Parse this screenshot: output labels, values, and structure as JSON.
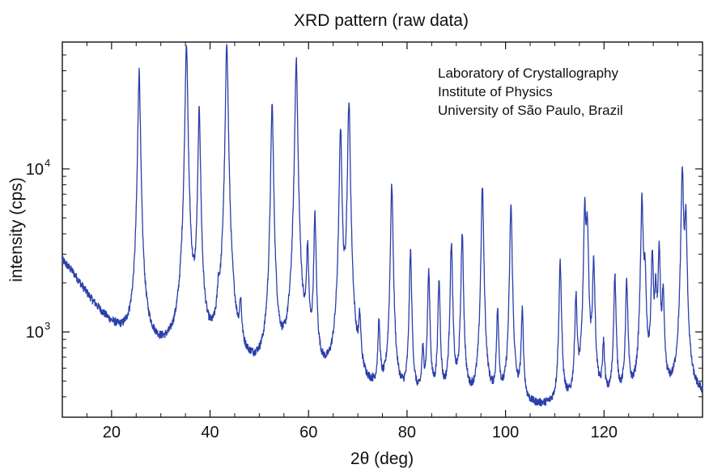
{
  "chart_data": {
    "type": "line",
    "title": "XRD pattern (raw data)",
    "xlabel": "2θ (deg)",
    "ylabel": "intensity (cps)",
    "xlim": [
      10,
      140
    ],
    "ylim": [
      300,
      60000
    ],
    "yscale": "log",
    "grid": false,
    "series_color": "#2b3fa8",
    "xticks": [
      {
        "value": 20,
        "label": "20"
      },
      {
        "value": 40,
        "label": "40"
      },
      {
        "value": 60,
        "label": "60"
      },
      {
        "value": 80,
        "label": "80"
      },
      {
        "value": 100,
        "label": "100"
      },
      {
        "value": 120,
        "label": "120"
      }
    ],
    "yticks": [
      {
        "value": 1000,
        "base": "10",
        "exp": "3"
      },
      {
        "value": 10000,
        "base": "10",
        "exp": "4"
      }
    ],
    "annotations": [
      "Laboratory of Crystallography",
      "Institute of Physics",
      "University of São Paulo, Brazil"
    ],
    "background": [
      [
        10,
        2750
      ],
      [
        12,
        2350
      ],
      [
        14,
        1900
      ],
      [
        16,
        1550
      ],
      [
        18,
        1300
      ],
      [
        20,
        1100
      ],
      [
        22,
        960
      ],
      [
        24,
        880
      ],
      [
        26,
        820
      ],
      [
        30,
        720
      ],
      [
        35,
        640
      ],
      [
        40,
        580
      ],
      [
        45,
        540
      ],
      [
        50,
        500
      ],
      [
        55,
        470
      ],
      [
        60,
        440
      ],
      [
        65,
        420
      ],
      [
        70,
        390
      ],
      [
        75,
        370
      ],
      [
        80,
        350
      ],
      [
        85,
        340
      ],
      [
        90,
        340
      ],
      [
        95,
        340
      ],
      [
        100,
        340
      ],
      [
        105,
        335
      ],
      [
        110,
        330
      ],
      [
        115,
        330
      ],
      [
        120,
        340
      ],
      [
        125,
        350
      ],
      [
        130,
        360
      ],
      [
        135,
        380
      ],
      [
        140,
        390
      ]
    ],
    "peaks": [
      {
        "x": 25.6,
        "y": 40000
      },
      {
        "x": 35.2,
        "y": 60000
      },
      {
        "x": 37.8,
        "y": 23000
      },
      {
        "x": 41.7,
        "y": 1150
      },
      {
        "x": 43.4,
        "y": 60000
      },
      {
        "x": 46.2,
        "y": 1200
      },
      {
        "x": 52.6,
        "y": 25000
      },
      {
        "x": 57.5,
        "y": 48000
      },
      {
        "x": 59.8,
        "y": 3000
      },
      {
        "x": 61.3,
        "y": 5000
      },
      {
        "x": 66.5,
        "y": 18000
      },
      {
        "x": 68.2,
        "y": 26000
      },
      {
        "x": 70.4,
        "y": 1000
      },
      {
        "x": 74.3,
        "y": 1050
      },
      {
        "x": 76.9,
        "y": 8000
      },
      {
        "x": 80.7,
        "y": 3100
      },
      {
        "x": 83.2,
        "y": 700
      },
      {
        "x": 84.4,
        "y": 2300
      },
      {
        "x": 86.5,
        "y": 2000
      },
      {
        "x": 89.0,
        "y": 3500
      },
      {
        "x": 91.2,
        "y": 4000
      },
      {
        "x": 95.3,
        "y": 7800
      },
      {
        "x": 98.4,
        "y": 1300
      },
      {
        "x": 101.1,
        "y": 6000
      },
      {
        "x": 103.4,
        "y": 1300
      },
      {
        "x": 111.1,
        "y": 2700
      },
      {
        "x": 114.3,
        "y": 1600
      },
      {
        "x": 116.1,
        "y": 5600
      },
      {
        "x": 116.6,
        "y": 4500
      },
      {
        "x": 117.9,
        "y": 2700
      },
      {
        "x": 119.9,
        "y": 800
      },
      {
        "x": 122.2,
        "y": 2200
      },
      {
        "x": 124.6,
        "y": 2000
      },
      {
        "x": 127.7,
        "y": 6500
      },
      {
        "x": 128.3,
        "y": 2200
      },
      {
        "x": 129.8,
        "y": 2900
      },
      {
        "x": 130.5,
        "y": 1600
      },
      {
        "x": 131.2,
        "y": 3100
      },
      {
        "x": 132.0,
        "y": 1600
      },
      {
        "x": 135.9,
        "y": 10000
      },
      {
        "x": 136.6,
        "y": 5000
      }
    ]
  }
}
